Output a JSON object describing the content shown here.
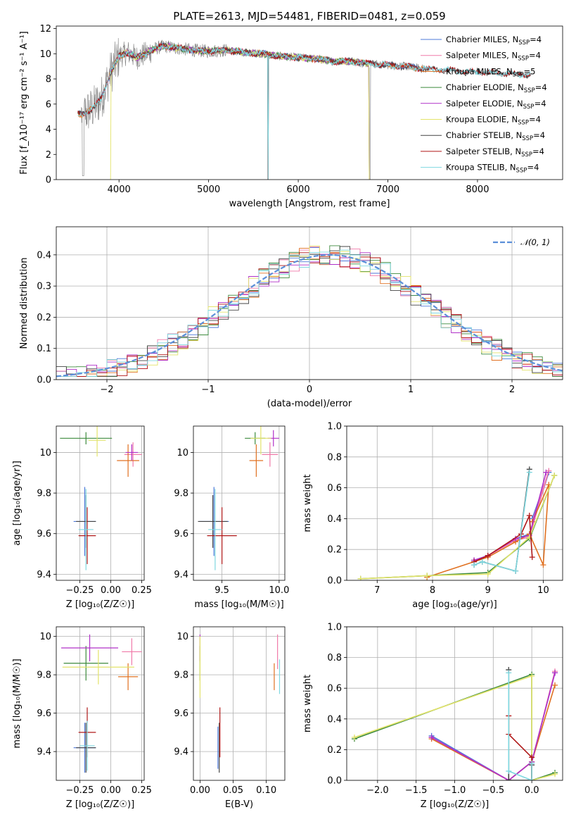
{
  "colors": {
    "Chabrier MILES": "#4e79d9",
    "Salpeter MILES": "#f07aa9",
    "Kroupa MILES": "#e07020",
    "Chabrier ELODIE": "#3c8a3c",
    "Salpeter ELODIE": "#b030c8",
    "Kroupa ELODIE": "#e3e36a",
    "Chabrier STELIB": "#444444",
    "Salpeter STELIB": "#b01818",
    "Kroupa STELIB": "#7fd8e0",
    "normal": "#5b8fd9",
    "data": "#808080"
  },
  "chart_data": [
    {
      "id": "spectrum",
      "type": "line",
      "title": "PLATE=2613, MJD=54481, FIBERID=0481, z=0.059",
      "xlabel": "wavelength [Angstrom, rest frame]",
      "ylabel": "Flux [f_λ10⁻¹⁷ erg cm⁻² s⁻¹ A⁻¹]",
      "xlim": [
        3300,
        8950
      ],
      "ylim": [
        0,
        12.2
      ],
      "xticks": [
        4000,
        5000,
        6000,
        7000,
        8000
      ],
      "yticks": [
        0,
        2,
        4,
        6,
        8,
        10,
        12
      ],
      "grid": false,
      "legend_position": "right",
      "legend": [
        {
          "name": "Chabrier MILES",
          "nssp": "4"
        },
        {
          "name": "Salpeter MILES",
          "nssp": "4"
        },
        {
          "name": "Kroupa MILES",
          "nssp": "5"
        },
        {
          "name": "Chabrier ELODIE",
          "nssp": "4"
        },
        {
          "name": "Salpeter ELODIE",
          "nssp": "4"
        },
        {
          "name": "Kroupa ELODIE",
          "nssp": "4"
        },
        {
          "name": "Chabrier STELIB",
          "nssp": "4"
        },
        {
          "name": "Salpeter STELIB",
          "nssp": "4"
        },
        {
          "name": "Kroupa STELIB",
          "nssp": "4"
        }
      ],
      "continuum": {
        "x": [
          3580,
          3700,
          3800,
          3900,
          4000,
          4100,
          4200,
          4300,
          4400,
          4500,
          4600,
          4800,
          5000,
          5200,
          5400,
          5600,
          5800,
          6000,
          6200,
          6400,
          6600,
          6800,
          7000,
          7200,
          7400
        ],
        "y": [
          5.2,
          5.6,
          6.4,
          8.4,
          9.8,
          10.1,
          9.7,
          10.0,
          10.4,
          10.6,
          10.5,
          10.3,
          10.2,
          10.3,
          10.1,
          10.0,
          9.8,
          9.7,
          9.6,
          9.4,
          9.4,
          9.2,
          9.1,
          9.0,
          8.8
        ]
      },
      "model_spans": {
        "Chabrier MILES": [
          3540,
          7410
        ],
        "Salpeter MILES": [
          3540,
          7410
        ],
        "Kroupa MILES": [
          3540,
          7410
        ],
        "Chabrier ELODIE": [
          3900,
          6800
        ],
        "Salpeter ELODIE": [
          3900,
          6800
        ],
        "Kroupa ELODIE": [
          3900,
          6800
        ],
        "Chabrier STELIB": [
          3540,
          8600
        ],
        "Salpeter STELIB": [
          3540,
          8600
        ],
        "Kroupa STELIB": [
          3540,
          8600
        ]
      }
    },
    {
      "id": "residuals",
      "type": "bar",
      "xlabel": "(data-model)/error",
      "ylabel": "Normed distribution",
      "xlim": [
        -2.5,
        2.5
      ],
      "ylim": [
        0,
        0.49
      ],
      "xticks": [
        -2,
        -1,
        0,
        1,
        2
      ],
      "xticklabels": [
        "−2",
        "−1",
        "0",
        "1",
        "2"
      ],
      "yticks": [
        0,
        0.1,
        0.2,
        0.3,
        0.4
      ],
      "yticklabels": [
        "0.0",
        "0.1",
        "0.2",
        "0.3",
        "0.4"
      ],
      "grid": true,
      "legend_position": "top-right",
      "normal_label": "𝒩(0, 1)",
      "bin_width": 0.1,
      "normal_mean": 0.2,
      "normal_peak": 0.4
    },
    {
      "id": "age-vs-Z",
      "type": "scatter",
      "xlabel": "Z [log₁₀(Z/Z☉)]",
      "ylabel": "age  [log₁₀(age/yr)]",
      "xlim": [
        -0.44,
        0.27
      ],
      "ylim": [
        9.37,
        10.13
      ],
      "xticks": [
        -0.25,
        0.0,
        0.25
      ],
      "xticklabels": [
        "−0.25",
        "0.00",
        "0.25"
      ],
      "yticks": [
        9.4,
        9.6,
        9.8,
        10.0
      ],
      "grid": true,
      "points": [
        {
          "s": "Chabrier MILES",
          "x": -0.21,
          "y": 9.66,
          "xe": 0.09,
          "ye": 0.17
        },
        {
          "s": "Salpeter MILES",
          "x": 0.18,
          "y": 9.99,
          "xe": 0.07,
          "ye": 0.06
        },
        {
          "s": "Kroupa MILES",
          "x": 0.14,
          "y": 9.96,
          "xe": 0.09,
          "ye": 0.08
        },
        {
          "s": "Chabrier ELODIE",
          "x": -0.2,
          "y": 10.07,
          "xe": 0.21,
          "ye": 0.03
        },
        {
          "s": "Salpeter ELODIE",
          "x": 0.17,
          "y": 10.0,
          "xe": 0.05,
          "ye": 0.04
        },
        {
          "s": "Kroupa ELODIE",
          "x": -0.11,
          "y": 10.06,
          "xe": 0.07,
          "ye": 0.08
        },
        {
          "s": "Chabrier STELIB",
          "x": -0.2,
          "y": 9.66,
          "xe": 0.08,
          "ye": 0.13
        },
        {
          "s": "Salpeter STELIB",
          "x": -0.19,
          "y": 9.59,
          "xe": 0.07,
          "ye": 0.14
        },
        {
          "s": "Kroupa STELIB",
          "x": -0.2,
          "y": 9.62,
          "xe": 0.06,
          "ye": 0.2
        }
      ]
    },
    {
      "id": "age-vs-mass",
      "type": "scatter",
      "xlabel": "mass [log₁₀(M/M☉)]",
      "ylabel": "",
      "xlim": [
        9.25,
        10.05
      ],
      "ylim": [
        9.37,
        10.13
      ],
      "xticks": [
        9.5,
        10.0
      ],
      "xticklabels": [
        "9.5",
        "10.0"
      ],
      "yticks": [
        9.4,
        9.6,
        9.8,
        10.0
      ],
      "grid": true,
      "points": [
        {
          "s": "Chabrier MILES",
          "x": 9.43,
          "y": 9.66,
          "xe": 0.13,
          "ye": 0.17
        },
        {
          "s": "Salpeter MILES",
          "x": 9.92,
          "y": 9.99,
          "xe": 0.07,
          "ye": 0.06
        },
        {
          "s": "Kroupa MILES",
          "x": 9.8,
          "y": 9.96,
          "xe": 0.06,
          "ye": 0.08
        },
        {
          "s": "Chabrier ELODIE",
          "x": 9.79,
          "y": 10.07,
          "xe": 0.09,
          "ye": 0.03
        },
        {
          "s": "Salpeter ELODIE",
          "x": 9.95,
          "y": 10.07,
          "xe": 0.05,
          "ye": 0.04
        },
        {
          "s": "Kroupa ELODIE",
          "x": 9.84,
          "y": 10.07,
          "xe": 0.09,
          "ye": 0.08
        },
        {
          "s": "Chabrier STELIB",
          "x": 9.42,
          "y": 9.66,
          "xe": 0.13,
          "ye": 0.13
        },
        {
          "s": "Salpeter STELIB",
          "x": 9.5,
          "y": 9.59,
          "xe": 0.13,
          "ye": 0.14
        },
        {
          "s": "Kroupa STELIB",
          "x": 9.44,
          "y": 9.62,
          "xe": 0.06,
          "ye": 0.2
        }
      ]
    },
    {
      "id": "weight-vs-age",
      "type": "line",
      "xlabel": "age  [log₁₀(age/yr)]",
      "ylabel": "mass weight",
      "xlim": [
        6.45,
        10.35
      ],
      "ylim": [
        0,
        1.0
      ],
      "xticks": [
        7,
        8,
        9,
        10
      ],
      "yticks": [
        0,
        0.2,
        0.4,
        0.6,
        0.8,
        1.0
      ],
      "yticklabels": [
        "0.0",
        "0.2",
        "0.4",
        "0.6",
        "0.8",
        "1.0"
      ],
      "grid": true,
      "series": [
        {
          "s": "Chabrier MILES",
          "x": [
            8.75,
            9.0,
            9.5,
            9.75,
            10.1,
            9.8
          ],
          "y": [
            0.13,
            0.16,
            0.27,
            0.3,
            0.7,
            0.4
          ]
        },
        {
          "s": "Salpeter MILES",
          "x": [
            8.75,
            9.0,
            9.5,
            9.75,
            10.1,
            9.8
          ],
          "y": [
            0.13,
            0.16,
            0.26,
            0.28,
            0.71,
            0.38
          ]
        },
        {
          "s": "Kroupa MILES",
          "x": [
            7.9,
            9.0,
            9.5,
            9.75,
            10.0,
            10.1,
            9.8
          ],
          "y": [
            0.02,
            0.15,
            0.25,
            0.3,
            0.1,
            0.62,
            0.38
          ]
        },
        {
          "s": "Chabrier ELODIE",
          "x": [
            6.7,
            7.9,
            9.0,
            9.75,
            10.2
          ],
          "y": [
            0.01,
            0.03,
            0.05,
            0.27,
            0.68
          ]
        },
        {
          "s": "Salpeter ELODIE",
          "x": [
            8.75,
            9.0,
            9.5,
            9.75,
            10.05
          ],
          "y": [
            0.13,
            0.16,
            0.27,
            0.29,
            0.7
          ]
        },
        {
          "s": "Kroupa ELODIE",
          "x": [
            6.7,
            7.9,
            9.0,
            9.75,
            10.2
          ],
          "y": [
            0.01,
            0.03,
            0.04,
            0.28,
            0.68
          ]
        },
        {
          "s": "Chabrier STELIB",
          "x": [
            8.75,
            8.9,
            9.5,
            9.75
          ],
          "y": [
            0.1,
            0.12,
            0.06,
            0.72
          ]
        },
        {
          "s": "Salpeter STELIB",
          "x": [
            8.75,
            9.0,
            9.6,
            9.75,
            9.8
          ],
          "y": [
            0.12,
            0.16,
            0.3,
            0.42,
            0.15
          ]
        },
        {
          "s": "Kroupa STELIB",
          "x": [
            8.75,
            8.9,
            9.5,
            9.75
          ],
          "y": [
            0.1,
            0.12,
            0.06,
            0.7
          ]
        }
      ]
    },
    {
      "id": "mass-vs-Z",
      "type": "scatter",
      "xlabel": "Z [log₁₀(Z/Z☉)]",
      "ylabel": "mass [log₁₀(M/M☉)]",
      "xlim": [
        -0.44,
        0.27
      ],
      "ylim": [
        9.25,
        10.05
      ],
      "xticks": [
        -0.25,
        0.0,
        0.25
      ],
      "xticklabels": [
        "−0.25",
        "0.00",
        "0.25"
      ],
      "yticks": [
        9.4,
        9.6,
        9.8,
        10.0
      ],
      "grid": true,
      "points": [
        {
          "s": "Chabrier MILES",
          "x": -0.21,
          "y": 9.42,
          "xe": 0.09,
          "ye": 0.13
        },
        {
          "s": "Salpeter MILES",
          "x": 0.17,
          "y": 9.92,
          "xe": 0.08,
          "ye": 0.07
        },
        {
          "s": "Kroupa MILES",
          "x": 0.14,
          "y": 9.79,
          "xe": 0.08,
          "ye": 0.07
        },
        {
          "s": "Chabrier ELODIE",
          "x": -0.2,
          "y": 9.86,
          "xe": 0.18,
          "ye": 0.09
        },
        {
          "s": "Salpeter ELODIE",
          "x": -0.17,
          "y": 9.94,
          "xe": 0.23,
          "ye": 0.07
        },
        {
          "s": "Kroupa ELODIE",
          "x": -0.1,
          "y": 9.84,
          "xe": 0.29,
          "ye": 0.09
        },
        {
          "s": "Chabrier STELIB",
          "x": -0.2,
          "y": 9.42,
          "xe": 0.08,
          "ye": 0.13
        },
        {
          "s": "Salpeter STELIB",
          "x": -0.19,
          "y": 9.5,
          "xe": 0.07,
          "ye": 0.13
        },
        {
          "s": "Kroupa STELIB",
          "x": -0.19,
          "y": 9.43,
          "xe": 0.06,
          "ye": 0.13
        }
      ]
    },
    {
      "id": "mass-vs-ebv",
      "type": "scatter",
      "xlabel": "E(B-V)",
      "ylabel": "",
      "xlim": [
        -0.01,
        0.128
      ],
      "ylim": [
        9.25,
        10.05
      ],
      "xticks": [
        0.0,
        0.05,
        0.1
      ],
      "xticklabels": [
        "0.00",
        "0.05",
        "0.10"
      ],
      "yticks": [
        9.4,
        9.6,
        9.8,
        10.0
      ],
      "grid": true,
      "points": [
        {
          "s": "Chabrier MILES",
          "x": 0.027,
          "y": 9.42,
          "xe": 0.0,
          "ye": 0.11
        },
        {
          "s": "Salpeter MILES",
          "x": 0.117,
          "y": 9.92,
          "xe": 0.0,
          "ye": 0.09
        },
        {
          "s": "Kroupa MILES",
          "x": 0.112,
          "y": 9.79,
          "xe": 0.0,
          "ye": 0.07
        },
        {
          "s": "Chabrier ELODIE",
          "x": 0.0,
          "y": 9.86,
          "xe": 0.0,
          "ye": 0.09
        },
        {
          "s": "Salpeter ELODIE",
          "x": 0.0,
          "y": 9.94,
          "xe": 0.0,
          "ye": 0.07
        },
        {
          "s": "Kroupa ELODIE",
          "x": 0.0,
          "y": 9.84,
          "xe": 0.0,
          "ye": 0.16
        },
        {
          "s": "Chabrier STELIB",
          "x": 0.029,
          "y": 9.42,
          "xe": 0.0,
          "ye": 0.13
        },
        {
          "s": "Salpeter STELIB",
          "x": 0.03,
          "y": 9.5,
          "xe": 0.0,
          "ye": 0.13
        },
        {
          "s": "Kroupa STELIB",
          "x": 0.12,
          "y": 9.79,
          "xe": 0.0,
          "ye": 0.09
        }
      ]
    },
    {
      "id": "weight-vs-Z",
      "type": "line",
      "xlabel": "Z [log₁₀(Z/Z☉)]",
      "ylabel": "mass weight",
      "xlim": [
        -2.4,
        0.4
      ],
      "ylim": [
        0,
        1.0
      ],
      "xticks": [
        -2.0,
        -1.5,
        -1.0,
        -0.5,
        0.0
      ],
      "xticklabels": [
        "−2.0",
        "−1.5",
        "−1.0",
        "−0.5",
        "0.0"
      ],
      "yticks": [
        0,
        0.2,
        0.4,
        0.6,
        0.8,
        1.0
      ],
      "yticklabels": [
        "0.0",
        "0.2",
        "0.4",
        "0.6",
        "0.8",
        "1.0"
      ],
      "grid": true,
      "series": [
        {
          "s": "Chabrier MILES",
          "x": [
            -1.3,
            -0.3,
            0.0,
            0.3
          ],
          "y": [
            0.29,
            0.0,
            0.12,
            0.7
          ]
        },
        {
          "s": "Salpeter MILES",
          "x": [
            -1.3,
            -0.3,
            0.0,
            0.3
          ],
          "y": [
            0.28,
            0.0,
            0.12,
            0.71
          ]
        },
        {
          "s": "Kroupa MILES",
          "x": [
            -1.3,
            -0.3,
            0.0,
            0.3
          ],
          "y": [
            0.27,
            0.0,
            0.12,
            0.62
          ]
        },
        {
          "s": "Chabrier ELODIE",
          "x": [
            -2.3,
            0.0,
            0.0,
            0.3
          ],
          "y": [
            0.27,
            0.69,
            0.0,
            0.05
          ]
        },
        {
          "s": "Salpeter ELODIE",
          "x": [
            -1.3,
            -0.3,
            0.0,
            0.3
          ],
          "y": [
            0.28,
            0.0,
            0.12,
            0.7
          ]
        },
        {
          "s": "Kroupa ELODIE",
          "x": [
            -2.3,
            0.0,
            0.0,
            0.3
          ],
          "y": [
            0.28,
            0.68,
            0.0,
            0.04
          ]
        },
        {
          "s": "Chabrier STELIB",
          "x": [
            -0.3,
            -0.3,
            0.0,
            0.0
          ],
          "y": [
            0.72,
            0.0,
            0.0,
            0.1
          ]
        },
        {
          "s": "Salpeter STELIB",
          "x": [
            -0.3,
            -0.3,
            0.0,
            0.0
          ],
          "y": [
            0.42,
            0.3,
            0.15,
            0.0
          ]
        },
        {
          "s": "Kroupa STELIB",
          "x": [
            -0.3,
            -0.3,
            0.0,
            0.0
          ],
          "y": [
            0.7,
            0.06,
            0.0,
            0.11
          ]
        }
      ]
    }
  ]
}
